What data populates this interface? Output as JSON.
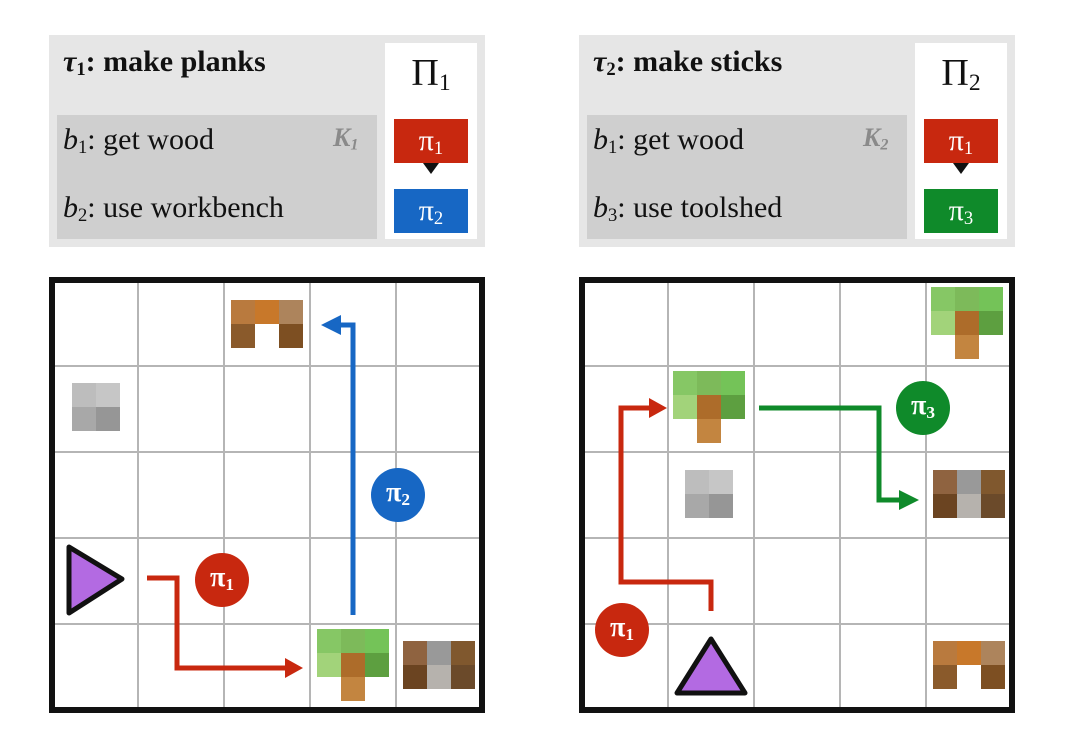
{
  "colors": {
    "red": "#c8280f",
    "blue": "#1767c4",
    "green": "#0f8a2a",
    "agent": "#b36ae2",
    "panel": "#e6e6e6",
    "kbox": "#cfcfcf"
  },
  "panels": [
    {
      "task_symbol": "τ",
      "task_index": "1",
      "task_name": ": make planks",
      "knowledge_symbol": "K",
      "knowledge_index": "1",
      "behaviors": [
        {
          "symbol": "b",
          "index": "1",
          "text": ": get wood"
        },
        {
          "symbol": "b",
          "index": "2",
          "text": ": use workbench"
        }
      ],
      "policy_set_symbol": "Π",
      "policy_set_index": "1",
      "policies": [
        {
          "symbol": "π",
          "index": "1"
        },
        {
          "symbol": "π",
          "index": "2"
        }
      ],
      "grid_badges": [
        {
          "symbol": "π",
          "index": "2"
        },
        {
          "symbol": "π",
          "index": "1"
        }
      ]
    },
    {
      "task_symbol": "τ",
      "task_index": "2",
      "task_name": ": make sticks",
      "knowledge_symbol": "K",
      "knowledge_index": "2",
      "behaviors": [
        {
          "symbol": "b",
          "index": "1",
          "text": ": get wood"
        },
        {
          "symbol": "b",
          "index": "3",
          "text": ": use toolshed"
        }
      ],
      "policy_set_symbol": "Π",
      "policy_set_index": "2",
      "policies": [
        {
          "symbol": "π",
          "index": "1"
        },
        {
          "symbol": "π",
          "index": "3"
        }
      ],
      "grid_badges": [
        {
          "symbol": "π",
          "index": "3"
        },
        {
          "symbol": "π",
          "index": "1"
        }
      ]
    }
  ],
  "grid": {
    "rows": 5,
    "cols": 5
  }
}
